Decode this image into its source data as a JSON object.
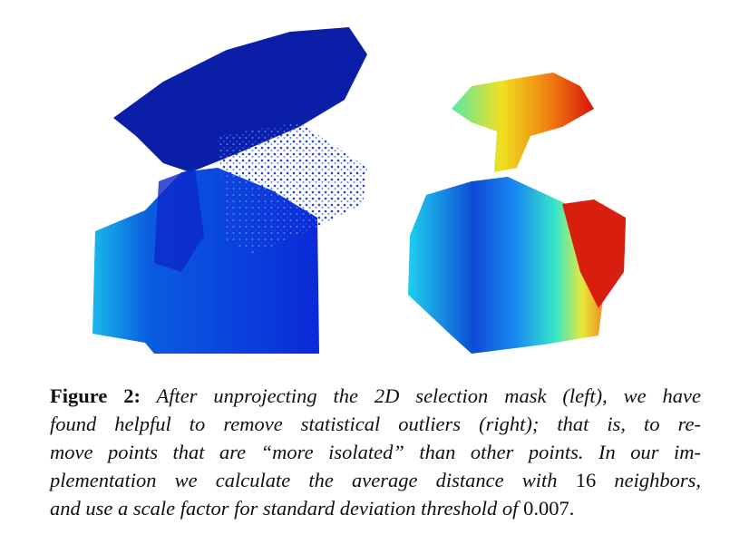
{
  "caption": {
    "label": "Figure 2:",
    "lines": [
      [
        "After unprojecting the 2D selection mask (left), we have"
      ],
      [
        "found helpful to remove statistical outliers (right); that is, to re-"
      ],
      [
        "move points that are “more isolated” than other points. In our im-"
      ],
      [
        "plementation we calculate the average distance with ",
        "16",
        " neighbors,"
      ],
      [
        "and use a scale factor for standard deviation threshold of ",
        "0.007",
        "."
      ]
    ]
  }
}
